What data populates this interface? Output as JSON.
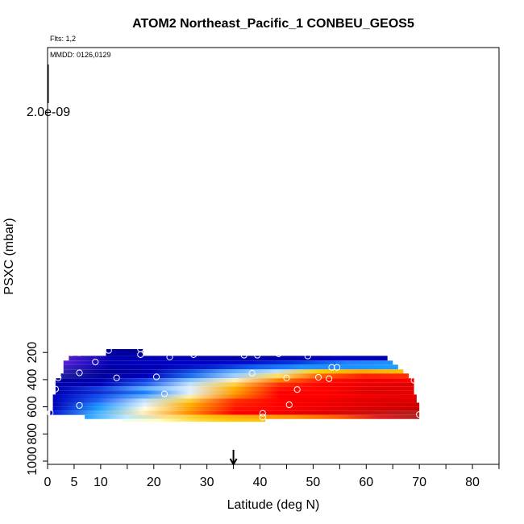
{
  "chart_data": {
    "type": "heatmap",
    "title": "ATOM2 Northeast_Pacific_1 CONBEU_GEOS5",
    "flights_label": "Flts: 1,2",
    "dates_label": "MMDD: 0126,0129",
    "xlabel": "Latitude (deg N)",
    "ylabel": "PSXC (mbar)",
    "xlim": [
      0,
      85
    ],
    "ylim": [
      1000,
      0
    ],
    "x_ticks": [
      0,
      5,
      10,
      20,
      30,
      40,
      50,
      60,
      70,
      80
    ],
    "x_ticks_unlabeled": [
      15,
      25,
      35,
      45,
      55,
      65,
      75,
      85
    ],
    "y_ticks": [
      200,
      400,
      600,
      800,
      1000
    ],
    "colorbar_label": "2.0e-09",
    "colorbar_range": [
      0,
      2e-09
    ],
    "arrow_latitude": 35,
    "colors": {
      "low": "#00008b",
      "mid_low": "#1e90ff",
      "mid": "#ffffe0",
      "mid_high": "#ffa500",
      "high": "#ff0000",
      "max": "#b22222"
    },
    "layers": [
      {
        "p_top": 175,
        "p_bottom": 225,
        "lat_min": 11,
        "lat_max": 18,
        "colors": [
          "#0000a0",
          "#0000a0"
        ]
      },
      {
        "p_top": 225,
        "p_bottom": 260,
        "lat_min": 4,
        "lat_max": 64,
        "colors": [
          "#4b1cc8",
          "#0000b0",
          "#0000b8",
          "#0000b0",
          "#0000a8",
          "#0000b0",
          "#0000c0",
          "#0000b0"
        ]
      },
      {
        "p_top": 260,
        "p_bottom": 290,
        "lat_min": 3,
        "lat_max": 65,
        "colors": [
          "#5a20d8",
          "#0000b8",
          "#0000c0",
          "#0000c8",
          "#0010d0",
          "#0040e0",
          "#1e80ff",
          "#1e90ff"
        ]
      },
      {
        "p_top": 290,
        "p_bottom": 325,
        "lat_min": 3,
        "lat_max": 66,
        "colors": [
          "#4020c0",
          "#0000a8",
          "#0000b8",
          "#0020d0",
          "#1060f0",
          "#2090ff",
          "#1e90ff",
          "#1ea0ff"
        ]
      },
      {
        "p_top": 325,
        "p_bottom": 355,
        "lat_min": 3,
        "lat_max": 67,
        "colors": [
          "#3020b0",
          "#000098",
          "#0000b0",
          "#1050e0",
          "#60b0ff",
          "#c0e0ff",
          "#ffd000",
          "#ffa500",
          "#ffc000"
        ]
      },
      {
        "p_top": 355,
        "p_bottom": 390,
        "lat_min": 2.5,
        "lat_max": 68,
        "colors": [
          "#2020a0",
          "#0000a0",
          "#0000c0",
          "#2070f0",
          "#a0d0ff",
          "#ffe060",
          "#ff6000",
          "#ff2000",
          "#ff3000"
        ]
      },
      {
        "p_top": 390,
        "p_bottom": 420,
        "lat_min": 1.5,
        "lat_max": 69,
        "colors": [
          "#0000a0",
          "#0000b0",
          "#1040e0",
          "#80c0ff",
          "#fff0c0",
          "#ff8000",
          "#ff1000",
          "#ee0000",
          "#ff0000"
        ]
      },
      {
        "p_top": 420,
        "p_bottom": 450,
        "lat_min": 1.5,
        "lat_max": 69,
        "colors": [
          "#0000a8",
          "#0000b8",
          "#2060f0",
          "#c0e0ff",
          "#ffd040",
          "#ff3000",
          "#ff0000",
          "#ee0000",
          "#e00000"
        ]
      },
      {
        "p_top": 450,
        "p_bottom": 480,
        "lat_min": 1.5,
        "lat_max": 69,
        "colors": [
          "#0000b0",
          "#1040e0",
          "#60b0ff",
          "#e0f0ff",
          "#ffb000",
          "#ff1000",
          "#ff0000",
          "#e00000",
          "#e00000"
        ]
      },
      {
        "p_top": 480,
        "p_bottom": 510,
        "lat_min": 1.5,
        "lat_max": 69,
        "colors": [
          "#0000b8",
          "#1030d0",
          "#2080ff",
          "#e0f0ff",
          "#ffa000",
          "#ff0000",
          "#ff0000",
          "#e00000",
          "#e80000"
        ]
      },
      {
        "p_top": 510,
        "p_bottom": 540,
        "lat_min": 1,
        "lat_max": 69.5,
        "colors": [
          "#0000c0",
          "#1050f0",
          "#60b0ff",
          "#fff0b0",
          "#ff8000",
          "#ff0000",
          "#ff0000",
          "#f00000",
          "#e80000"
        ]
      },
      {
        "p_top": 540,
        "p_bottom": 570,
        "lat_min": 1,
        "lat_max": 69.5,
        "colors": [
          "#0000b8",
          "#2060f0",
          "#c0e0ff",
          "#ffd040",
          "#ff3000",
          "#ff0000",
          "#f00000",
          "#e00000",
          "#dd0000"
        ]
      },
      {
        "p_top": 570,
        "p_bottom": 600,
        "lat_min": 1,
        "lat_max": 70,
        "colors": [
          "#0000b0",
          "#1e90ff",
          "#e0f0ff",
          "#ffb000",
          "#ff2000",
          "#ff0000",
          "#f00000",
          "#e00000",
          "#d00000"
        ]
      },
      {
        "p_top": 600,
        "p_bottom": 630,
        "lat_min": 1,
        "lat_max": 70,
        "colors": [
          "#0000c8",
          "#1ea0ff",
          "#ffffe0",
          "#ffa000",
          "#ff1000",
          "#ff0000",
          "#e80000",
          "#d80000",
          "#c80000"
        ]
      },
      {
        "p_top": 630,
        "p_bottom": 660,
        "lat_min": 0.5,
        "lat_max": 70,
        "colors": [
          "#0010d0",
          "#40b0ff",
          "#fff0c0",
          "#ff9000",
          "#ff0000",
          "#f00000",
          "#e00000",
          "#c81010",
          "#b22222"
        ]
      },
      {
        "p_top": 660,
        "p_bottom": 690,
        "lat_min": 7,
        "lat_max": 70,
        "colors": [
          "#1ea0ff",
          "#c0e8ff",
          "#ffe080",
          "#ffc000",
          "#ffa500",
          "#ff9000",
          "#ff6000",
          "#e02020",
          "#b22222"
        ]
      },
      {
        "p_top": 690,
        "p_bottom": 710,
        "lat_min": 14,
        "lat_max": 41,
        "colors": [
          "#e8fff0",
          "#ffffc0",
          "#ffe040",
          "#ffc800",
          "#ffc000"
        ]
      }
    ],
    "points": [
      [
        11.5,
        185
      ],
      [
        17.5,
        175
      ],
      [
        4.5,
        203
      ],
      [
        6,
        203
      ],
      [
        17.5,
        216
      ],
      [
        23,
        233
      ],
      [
        27.5,
        216
      ],
      [
        37,
        220
      ],
      [
        39.5,
        220
      ],
      [
        43.5,
        210
      ],
      [
        49,
        226
      ],
      [
        64,
        195
      ],
      [
        3,
        222
      ],
      [
        9,
        270
      ],
      [
        53.5,
        310
      ],
      [
        54.5,
        310
      ],
      [
        6,
        350
      ],
      [
        38.5,
        353
      ],
      [
        2,
        387
      ],
      [
        13,
        387
      ],
      [
        20.5,
        380
      ],
      [
        45,
        387
      ],
      [
        51,
        383
      ],
      [
        53,
        393
      ],
      [
        69,
        405
      ],
      [
        1.5,
        470
      ],
      [
        22,
        505
      ],
      [
        47,
        473
      ],
      [
        6,
        590
      ],
      [
        45.5,
        585
      ],
      [
        0.5,
        645
      ],
      [
        40.5,
        648
      ],
      [
        70,
        657
      ],
      [
        40.5,
        676
      ]
    ]
  }
}
